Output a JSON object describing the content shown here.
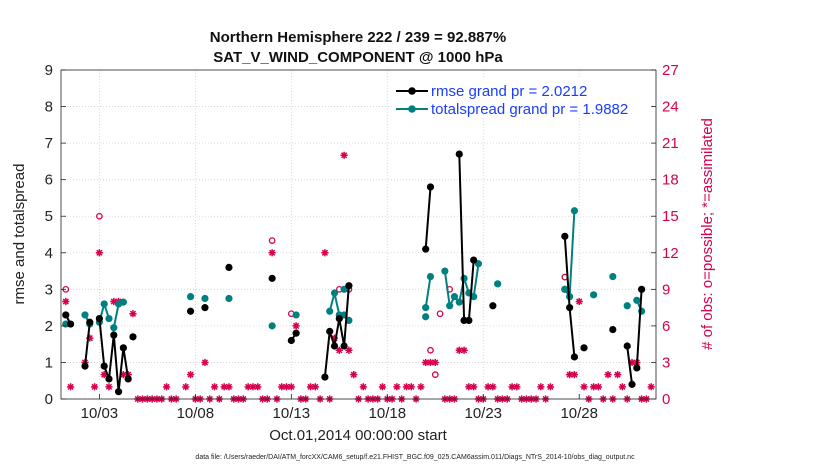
{
  "chart_data": {
    "type": "line",
    "title": "Northern Hemisphere 222 / 239 = 92.887%",
    "subtitle": "SAT_V_WIND_COMPONENT @ 1000 hPa",
    "xlabel": "Oct.01,2014 00:00:00 start",
    "ylabel": "rmse and totalspread",
    "y2label": "# of obs: o=possible; *=assimilated",
    "footer": "data file: /Users/raeder/DAI/ATM_forcXX/CAM6_setup/f.e21.FHIST_BGC.f09_025.CAM6assim.011/Diags_NTrS_2014-10/obs_diag_output.nc",
    "xlim": [
      1,
      32
    ],
    "ylim": [
      0,
      9
    ],
    "y2lim": [
      0,
      27
    ],
    "xticks": [
      3,
      8,
      13,
      18,
      23,
      28
    ],
    "xtick_labels": [
      "10/03",
      "10/08",
      "10/13",
      "10/18",
      "10/23",
      "10/28"
    ],
    "yticks": [
      0,
      1,
      2,
      3,
      4,
      5,
      6,
      7,
      8,
      9
    ],
    "y2ticks": [
      0,
      3,
      6,
      9,
      12,
      15,
      18,
      21,
      24,
      27
    ],
    "legend": [
      {
        "label": "rmse grand pr = 2.0212",
        "color": "#000000"
      },
      {
        "label": "totalspread grand pr = 1.9882",
        "color": "#008080"
      }
    ],
    "colors": {
      "rmse": "#000000",
      "spread": "#008080",
      "obs": "#d6004f"
    },
    "series": [
      {
        "name": "rmse",
        "segments": [
          [
            [
              1.25,
              2.3
            ],
            [
              1.5,
              2.05
            ]
          ],
          [
            [
              2.25,
              0.9
            ],
            [
              2.5,
              2.1
            ]
          ],
          [
            [
              3.0,
              2.2
            ],
            [
              3.25,
              0.9
            ],
            [
              3.5,
              0.55
            ],
            [
              3.75,
              1.75
            ],
            [
              4.0,
              0.2
            ],
            [
              4.25,
              1.4
            ],
            [
              4.5,
              0.55
            ]
          ],
          [
            [
              4.75,
              1.7
            ]
          ],
          [
            [
              7.75,
              2.4
            ]
          ],
          [
            [
              8.5,
              2.5
            ]
          ],
          [
            [
              9.75,
              3.6
            ]
          ],
          [
            [
              12.0,
              3.3
            ]
          ],
          [
            [
              13.0,
              1.6
            ],
            [
              13.25,
              1.8
            ]
          ],
          [
            [
              14.75,
              0.6
            ],
            [
              15.0,
              1.85
            ],
            [
              15.25,
              1.45
            ],
            [
              15.5,
              2.2
            ],
            [
              15.75,
              1.45
            ],
            [
              16.0,
              3.1
            ]
          ],
          [
            [
              20.0,
              4.1
            ],
            [
              20.25,
              5.8
            ]
          ],
          [
            [
              21.75,
              6.7
            ],
            [
              22.0,
              2.15
            ],
            [
              22.25,
              2.15
            ],
            [
              22.5,
              3.8
            ]
          ],
          [
            [
              23.5,
              2.55
            ]
          ],
          [
            [
              27.25,
              4.45
            ],
            [
              27.5,
              2.5
            ],
            [
              27.75,
              1.15
            ]
          ],
          [
            [
              28.25,
              1.4
            ]
          ],
          [
            [
              29.75,
              1.9
            ]
          ],
          [
            [
              30.5,
              1.45
            ],
            [
              30.75,
              0.4
            ]
          ],
          [
            [
              31.0,
              0.85
            ],
            [
              31.25,
              3.0
            ]
          ]
        ]
      },
      {
        "name": "totalspread",
        "segments": [
          [
            [
              1.25,
              2.05
            ]
          ],
          [
            [
              2.25,
              2.3
            ],
            [
              2.5,
              2.05
            ]
          ],
          [
            [
              3.0,
              2.1
            ],
            [
              3.25,
              2.6
            ],
            [
              3.5,
              2.2
            ]
          ],
          [
            [
              3.75,
              1.95
            ],
            [
              4.0,
              2.6
            ],
            [
              4.25,
              2.65
            ]
          ],
          [
            [
              7.75,
              2.8
            ]
          ],
          [
            [
              8.5,
              2.75
            ]
          ],
          [
            [
              9.75,
              2.75
            ]
          ],
          [
            [
              12.0,
              2.0
            ]
          ],
          [
            [
              13.25,
              2.3
            ]
          ],
          [
            [
              15.0,
              2.4
            ],
            [
              15.25,
              2.9
            ],
            [
              15.5,
              2.3
            ],
            [
              15.75,
              2.3
            ],
            [
              16.0,
              2.15
            ]
          ],
          [
            [
              15.75,
              3.0
            ]
          ],
          [
            [
              20.0,
              2.25
            ]
          ],
          [
            [
              20.0,
              2.5
            ],
            [
              20.25,
              3.35
            ]
          ],
          [
            [
              21.0,
              3.5
            ],
            [
              21.25,
              2.55
            ],
            [
              21.5,
              2.8
            ],
            [
              21.75,
              2.65
            ],
            [
              22.0,
              3.3
            ],
            [
              22.25,
              2.9
            ],
            [
              22.5,
              2.8
            ],
            [
              22.75,
              3.7
            ]
          ],
          [
            [
              23.75,
              3.15
            ]
          ],
          [
            [
              27.25,
              3.0
            ],
            [
              27.5,
              2.8
            ],
            [
              27.75,
              5.15
            ]
          ],
          [
            [
              28.75,
              2.85
            ]
          ],
          [
            [
              29.75,
              3.35
            ]
          ],
          [
            [
              30.5,
              2.55
            ]
          ],
          [
            [
              31.0,
              2.7
            ],
            [
              31.25,
              2.4
            ]
          ]
        ]
      },
      {
        "name": "obs_possible",
        "points": [
          [
            1.25,
            9
          ],
          [
            3.0,
            15
          ],
          [
            12.0,
            13
          ],
          [
            13.0,
            7
          ],
          [
            15.5,
            9
          ],
          [
            16.0,
            9
          ],
          [
            20.25,
            4
          ],
          [
            20.5,
            2
          ],
          [
            20.75,
            7
          ],
          [
            21.25,
            9
          ],
          [
            27.25,
            10
          ]
        ]
      },
      {
        "name": "obs_assimilated",
        "points": [
          [
            1.25,
            8
          ],
          [
            1.5,
            1
          ],
          [
            2.25,
            3
          ],
          [
            2.5,
            5
          ],
          [
            2.75,
            1
          ],
          [
            3.0,
            12
          ],
          [
            3.25,
            2
          ],
          [
            3.5,
            1
          ],
          [
            3.75,
            8
          ],
          [
            4.0,
            8
          ],
          [
            4.25,
            2
          ],
          [
            4.5,
            2
          ],
          [
            4.75,
            7
          ],
          [
            5.0,
            0
          ],
          [
            5.25,
            0
          ],
          [
            5.5,
            0
          ],
          [
            5.75,
            0
          ],
          [
            6.0,
            0
          ],
          [
            6.25,
            0
          ],
          [
            6.5,
            1
          ],
          [
            6.75,
            0
          ],
          [
            7.0,
            0
          ],
          [
            7.5,
            1
          ],
          [
            7.75,
            2
          ],
          [
            8.0,
            0
          ],
          [
            8.25,
            0
          ],
          [
            8.5,
            3
          ],
          [
            8.75,
            0
          ],
          [
            9.0,
            1
          ],
          [
            9.25,
            0
          ],
          [
            9.5,
            1
          ],
          [
            9.75,
            1
          ],
          [
            10.0,
            0
          ],
          [
            10.25,
            0
          ],
          [
            10.5,
            0
          ],
          [
            10.75,
            1
          ],
          [
            11.0,
            1
          ],
          [
            11.25,
            1
          ],
          [
            11.5,
            0
          ],
          [
            11.75,
            0
          ],
          [
            12.0,
            12
          ],
          [
            12.25,
            0
          ],
          [
            12.5,
            1
          ],
          [
            12.75,
            1
          ],
          [
            13.0,
            1
          ],
          [
            13.25,
            6
          ],
          [
            13.5,
            0
          ],
          [
            13.75,
            0
          ],
          [
            14.0,
            1
          ],
          [
            14.25,
            1
          ],
          [
            14.5,
            0
          ],
          [
            14.75,
            12
          ],
          [
            15.0,
            0
          ],
          [
            15.25,
            5
          ],
          [
            15.5,
            4
          ],
          [
            15.75,
            20
          ],
          [
            16.0,
            4
          ],
          [
            16.25,
            2
          ],
          [
            16.5,
            0
          ],
          [
            16.75,
            1
          ],
          [
            17.0,
            0
          ],
          [
            17.25,
            0
          ],
          [
            17.5,
            0
          ],
          [
            17.75,
            1
          ],
          [
            18.0,
            0
          ],
          [
            18.25,
            0
          ],
          [
            18.5,
            1
          ],
          [
            18.75,
            0
          ],
          [
            19.0,
            1
          ],
          [
            19.25,
            1
          ],
          [
            19.5,
            0
          ],
          [
            19.75,
            1
          ],
          [
            20.0,
            3
          ],
          [
            20.25,
            3
          ],
          [
            20.5,
            3
          ],
          [
            21.0,
            0
          ],
          [
            21.25,
            0
          ],
          [
            21.5,
            0
          ],
          [
            21.75,
            4
          ],
          [
            22.0,
            4
          ],
          [
            22.25,
            1
          ],
          [
            22.5,
            1
          ],
          [
            22.75,
            0
          ],
          [
            23.0,
            0
          ],
          [
            23.25,
            1
          ],
          [
            23.5,
            1
          ],
          [
            23.75,
            0
          ],
          [
            24.0,
            0
          ],
          [
            24.25,
            0
          ],
          [
            24.5,
            1
          ],
          [
            24.75,
            1
          ],
          [
            25.0,
            0
          ],
          [
            25.25,
            0
          ],
          [
            25.5,
            0
          ],
          [
            25.75,
            0
          ],
          [
            26.0,
            1
          ],
          [
            26.25,
            0
          ],
          [
            26.5,
            1
          ],
          [
            27.25,
            9
          ],
          [
            27.5,
            2
          ],
          [
            27.75,
            2
          ],
          [
            28.0,
            8
          ],
          [
            28.25,
            1
          ],
          [
            28.5,
            0
          ],
          [
            28.75,
            1
          ],
          [
            29.0,
            1
          ],
          [
            29.25,
            0
          ],
          [
            29.5,
            2
          ],
          [
            29.75,
            0
          ],
          [
            30.0,
            2
          ],
          [
            30.25,
            1
          ],
          [
            30.5,
            0
          ],
          [
            30.75,
            3
          ],
          [
            31.0,
            3
          ],
          [
            31.25,
            0
          ],
          [
            31.5,
            0
          ],
          [
            31.75,
            1
          ]
        ]
      }
    ]
  }
}
